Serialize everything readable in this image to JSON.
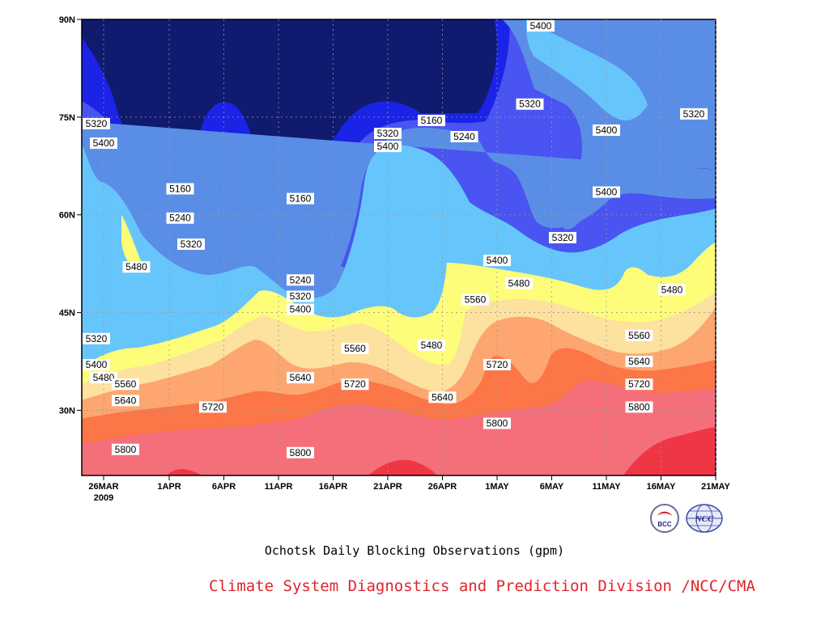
{
  "chart_data": {
    "type": "heatmap",
    "title": "Ochotsk Daily Blocking Observations (gpm)",
    "x_label": "",
    "y_label": "",
    "x_ticks": [
      "26MAR",
      "1APR",
      "6APR",
      "11APR",
      "16APR",
      "21APR",
      "26APR",
      "1MAY",
      "6MAY",
      "11MAY",
      "16MAY",
      "21MAY"
    ],
    "x_year_label": "2009",
    "y_ticks": [
      "30N",
      "45N",
      "60N",
      "75N",
      "90N"
    ],
    "y_range_deg": [
      20,
      90
    ],
    "x_range": [
      "2009-03-24",
      "2009-05-21"
    ],
    "contour_levels": [
      5160,
      5240,
      5320,
      5400,
      5480,
      5560,
      5640,
      5720,
      5800
    ],
    "fill_colors": {
      "below_5160": "#101a6e",
      "5160_5240": "#1a23e6",
      "5240_5320": "#4a54f0",
      "5320_5400": "#5a8ee6",
      "5400_5480": "#66c6fb",
      "5480_5560": "#fdfd7a",
      "5560_5640": "#fde19e",
      "5640_5720": "#fda66f",
      "5720_5800": "#fd7647",
      "5800_5880": "#f56f7a",
      "above_5880": "#ef3644"
    },
    "contour_labels": [
      {
        "value": "5320",
        "date": "2009-03-24",
        "lat": 74
      },
      {
        "value": "5400",
        "date": "2009-03-26",
        "lat": 71
      },
      {
        "value": "5480",
        "date": "2009-03-29",
        "lat": 52
      },
      {
        "value": "5320",
        "date": "2009-03-24",
        "lat": 41
      },
      {
        "value": "5400",
        "date": "2009-03-25",
        "lat": 37
      },
      {
        "value": "5480",
        "date": "2009-03-26",
        "lat": 35
      },
      {
        "value": "5560",
        "date": "2009-03-28",
        "lat": 34
      },
      {
        "value": "5640",
        "date": "2009-03-28",
        "lat": 31.5
      },
      {
        "value": "5800",
        "date": "2009-03-28",
        "lat": 24
      },
      {
        "value": "5160",
        "date": "2009-04-02",
        "lat": 64
      },
      {
        "value": "5240",
        "date": "2009-04-02",
        "lat": 59.5
      },
      {
        "value": "5320",
        "date": "2009-04-03",
        "lat": 55.5
      },
      {
        "value": "5720",
        "date": "2009-04-05",
        "lat": 30.5
      },
      {
        "value": "5160",
        "date": "2009-04-13",
        "lat": 62.5
      },
      {
        "value": "5240",
        "date": "2009-04-13",
        "lat": 50
      },
      {
        "value": "5320",
        "date": "2009-04-13",
        "lat": 47.5
      },
      {
        "value": "5400",
        "date": "2009-04-13",
        "lat": 45.5
      },
      {
        "value": "5640",
        "date": "2009-04-13",
        "lat": 35
      },
      {
        "value": "5800",
        "date": "2009-04-13",
        "lat": 23.5
      },
      {
        "value": "5560",
        "date": "2009-04-18",
        "lat": 39.5
      },
      {
        "value": "5720",
        "date": "2009-04-18",
        "lat": 34
      },
      {
        "value": "5320",
        "date": "2009-04-21",
        "lat": 72.5
      },
      {
        "value": "5400",
        "date": "2009-04-21",
        "lat": 70.5
      },
      {
        "value": "5160",
        "date": "2009-04-25",
        "lat": 74.5
      },
      {
        "value": "5240",
        "date": "2009-04-28",
        "lat": 72
      },
      {
        "value": "5480",
        "date": "2009-04-25",
        "lat": 40
      },
      {
        "value": "5640",
        "date": "2009-04-26",
        "lat": 32
      },
      {
        "value": "5560",
        "date": "2009-04-29",
        "lat": 47
      },
      {
        "value": "5400",
        "date": "2009-05-01",
        "lat": 53
      },
      {
        "value": "5480",
        "date": "2009-05-03",
        "lat": 49.5
      },
      {
        "value": "5720",
        "date": "2009-05-01",
        "lat": 37
      },
      {
        "value": "5800",
        "date": "2009-05-01",
        "lat": 28
      },
      {
        "value": "5400",
        "date": "2009-05-05",
        "lat": 89
      },
      {
        "value": "5320",
        "date": "2009-05-04",
        "lat": 77
      },
      {
        "value": "5320",
        "date": "2009-05-07",
        "lat": 56.5
      },
      {
        "value": "5400",
        "date": "2009-05-11",
        "lat": 73
      },
      {
        "value": "5400",
        "date": "2009-05-11",
        "lat": 63.5
      },
      {
        "value": "5320",
        "date": "2009-05-19",
        "lat": 75.5
      },
      {
        "value": "5480",
        "date": "2009-05-17",
        "lat": 48.5
      },
      {
        "value": "5560",
        "date": "2009-05-14",
        "lat": 41.5
      },
      {
        "value": "5640",
        "date": "2009-05-14",
        "lat": 37.5
      },
      {
        "value": "5720",
        "date": "2009-05-14",
        "lat": 34
      },
      {
        "value": "5800",
        "date": "2009-05-14",
        "lat": 30.5
      }
    ],
    "grid": true,
    "logos": [
      "BCC",
      "NCC"
    ]
  },
  "footer": {
    "text": "Climate System Diagnostics and Prediction Division /NCC/CMA",
    "color": "#e0242c"
  }
}
